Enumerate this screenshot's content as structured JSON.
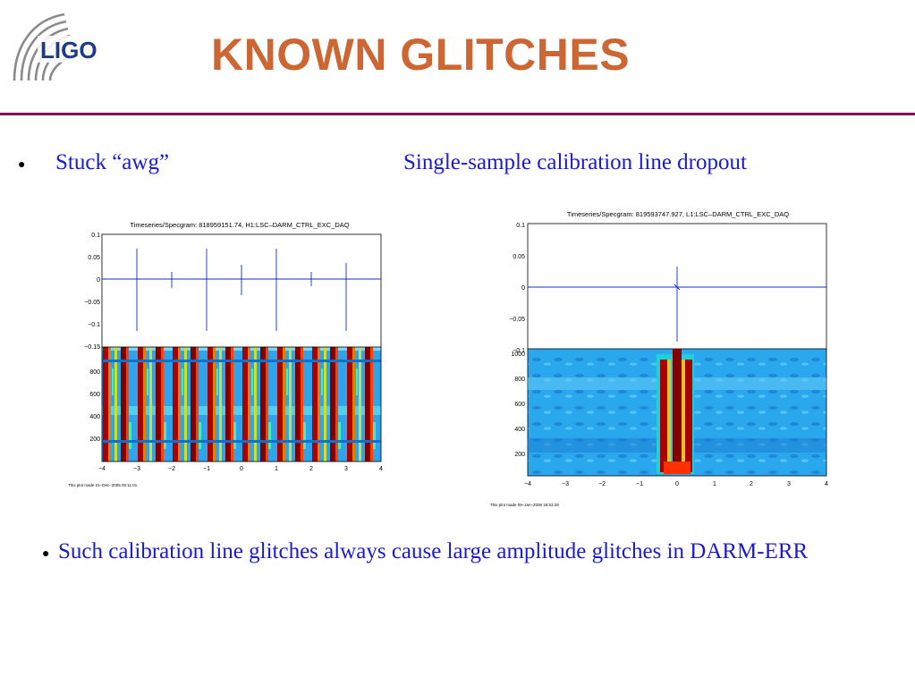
{
  "header": {
    "logo_text": "LIGO",
    "title": "KNOWN GLITCHES"
  },
  "captions": {
    "left": "Stuck “awg”",
    "right": "Single-sample calibration line dropout"
  },
  "bottom_text": "Such calibration line glitches always cause large amplitude glitches in DARM-ERR",
  "colors": {
    "title": "#cc6633",
    "rule": "#800060",
    "caption_text": "#1a1ad0"
  },
  "figures": [
    {
      "plot_title": "Timeseries/Specgram: 818959151.74, H1:LSC–DARM_CTRL_EXC_DAQ",
      "footer": "This plot made 21–Dec–2005 00:11:01",
      "timeseries_yticks": [
        "0.1",
        "0.05",
        "0",
        "−0.05",
        "−0.1",
        "−0.15"
      ],
      "spectrogram_yticks": [
        "1000",
        "800",
        "600",
        "400",
        "200"
      ],
      "xticks": [
        "−4",
        "−3",
        "−2",
        "−1",
        "0",
        "1",
        "2",
        "3",
        "4"
      ]
    },
    {
      "plot_title": "Timeseries/Specgram: 819593747.927, L1:LSC–DARM_CTRL_EXC_DAQ",
      "footer": "This plot made 09–Jan–2006 18:53:29",
      "timeseries_yticks": [
        "0.1",
        "0.05",
        "0",
        "−0.05",
        "−0.1"
      ],
      "spectrogram_yticks": [
        "1000",
        "800",
        "600",
        "400",
        "200"
      ],
      "xticks": [
        "−4",
        "−3",
        "−2",
        "−1",
        "0",
        "1",
        "2",
        "3",
        "4"
      ]
    }
  ]
}
